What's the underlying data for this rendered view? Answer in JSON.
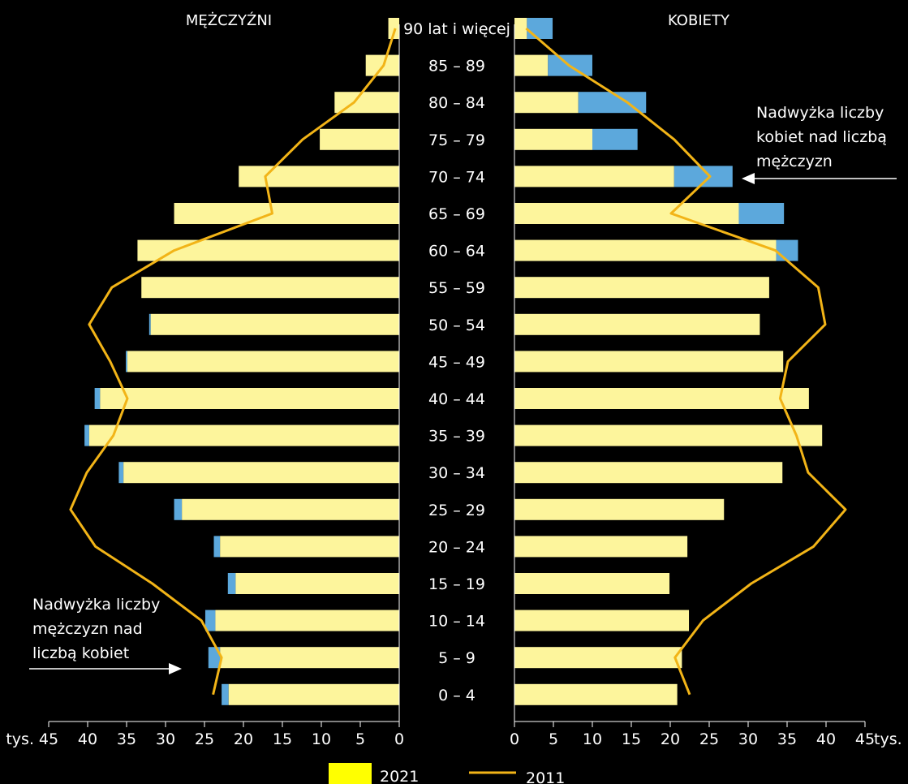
{
  "chart_data": {
    "type": "bar",
    "titles": {
      "left": "MĘŻCZYŹNI",
      "right": "KOBIETY"
    },
    "categories": [
      "90 lat i więcej",
      "85 – 89",
      "80 – 84",
      "75 – 79",
      "70 –  74",
      "65 – 69",
      "60 – 64",
      "55 – 59",
      "50 – 54",
      "45 – 49",
      "40 – 44",
      "35 – 39",
      "30 – 34",
      "25 – 29",
      "20 – 24",
      "15 – 19",
      "10 – 14",
      "5 – 9",
      "0 – 4"
    ],
    "men": {
      "bars_2021": [
        1.4,
        4.3,
        8.3,
        10.2,
        20.6,
        28.9,
        33.6,
        33.1,
        31.9,
        34.9,
        38.4,
        39.8,
        35.4,
        27.9,
        23.0,
        21.0,
        23.6,
        23.0,
        21.9
      ],
      "excess_over_women": [
        0,
        0,
        0,
        0,
        0,
        0,
        0,
        0,
        0.2,
        0.2,
        0.7,
        0.6,
        0.6,
        1.0,
        0.8,
        1.0,
        1.3,
        1.5,
        0.9
      ],
      "line_2011": [
        0.5,
        2.0,
        5.8,
        12.4,
        17.2,
        16.3,
        28.9,
        36.9,
        39.8,
        37.1,
        34.9,
        36.7,
        40.1,
        42.2,
        39.0,
        31.7,
        25.4,
        22.8,
        23.9
      ]
    },
    "women": {
      "bars_2021": [
        1.6,
        4.3,
        8.2,
        10.0,
        20.5,
        28.8,
        33.6,
        32.7,
        31.5,
        34.5,
        37.8,
        39.5,
        34.4,
        26.9,
        22.2,
        19.9,
        22.4,
        21.5,
        20.9
      ],
      "excess_over_men": [
        3.3,
        5.7,
        8.7,
        5.8,
        7.5,
        5.8,
        2.8,
        0,
        0,
        0,
        0,
        0,
        0,
        0,
        0,
        0,
        0,
        0,
        0
      ],
      "line_2011": [
        1.5,
        7.0,
        14.5,
        20.5,
        25.1,
        20.1,
        33.5,
        39.0,
        39.9,
        35.1,
        34.1,
        36.2,
        37.7,
        42.5,
        38.4,
        30.4,
        24.2,
        20.6,
        22.5
      ]
    },
    "xlim": [
      0,
      45
    ],
    "x_ticks": [
      0,
      5,
      10,
      15,
      20,
      25,
      30,
      35,
      40,
      45
    ],
    "unit_label_left": "tys.",
    "unit_label_right": "tys.",
    "legend": {
      "placement": "bottom",
      "bars_label": "2021",
      "line_label": "2011"
    },
    "annotations": {
      "men_excess": [
        "Nadwyżka liczby",
        "mężczyzn nad",
        "liczbą kobiet"
      ],
      "women_excess": [
        "Nadwyżka liczby",
        "kobiet nad liczbą",
        "mężczyzn"
      ]
    },
    "colors": {
      "bar": "#fdf59c",
      "excess": "#5ca8dc",
      "line": "#f2b417",
      "legend_swatch": "#ffff00",
      "background": "#000000",
      "text": "#ffffff"
    }
  }
}
